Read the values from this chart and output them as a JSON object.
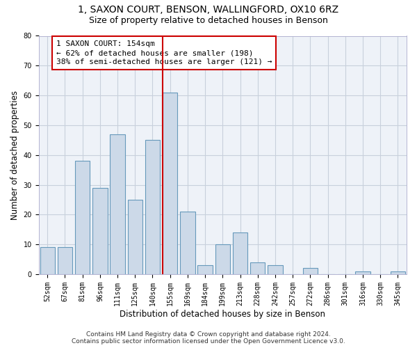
{
  "title1": "1, SAXON COURT, BENSON, WALLINGFORD, OX10 6RZ",
  "title2": "Size of property relative to detached houses in Benson",
  "xlabel": "Distribution of detached houses by size in Benson",
  "ylabel": "Number of detached properties",
  "categories": [
    "52sqm",
    "67sqm",
    "81sqm",
    "96sqm",
    "111sqm",
    "125sqm",
    "140sqm",
    "155sqm",
    "169sqm",
    "184sqm",
    "199sqm",
    "213sqm",
    "228sqm",
    "242sqm",
    "257sqm",
    "272sqm",
    "286sqm",
    "301sqm",
    "316sqm",
    "330sqm",
    "345sqm"
  ],
  "values": [
    9,
    9,
    38,
    29,
    47,
    25,
    45,
    61,
    21,
    3,
    10,
    14,
    4,
    3,
    0,
    2,
    0,
    0,
    1,
    0,
    1
  ],
  "bar_color": "#ccd9e8",
  "bar_edge_color": "#6699bb",
  "vline_index": 7,
  "vline_color": "#cc0000",
  "box_color": "#cc0000",
  "ann_line1": "1 SAXON COURT: 154sqm",
  "ann_line2": "← 62% of detached houses are smaller (198)",
  "ann_line3": "38% of semi-detached houses are larger (121) →",
  "ylim": [
    0,
    80
  ],
  "yticks": [
    0,
    10,
    20,
    30,
    40,
    50,
    60,
    70,
    80
  ],
  "grid_color": "#c8d0dc",
  "bg_color": "#eef2f8",
  "footer1": "Contains HM Land Registry data © Crown copyright and database right 2024.",
  "footer2": "Contains public sector information licensed under the Open Government Licence v3.0.",
  "title1_fontsize": 10,
  "title2_fontsize": 9,
  "xlabel_fontsize": 8.5,
  "ylabel_fontsize": 8.5,
  "tick_fontsize": 7,
  "ann_fontsize": 8,
  "footer_fontsize": 6.5
}
